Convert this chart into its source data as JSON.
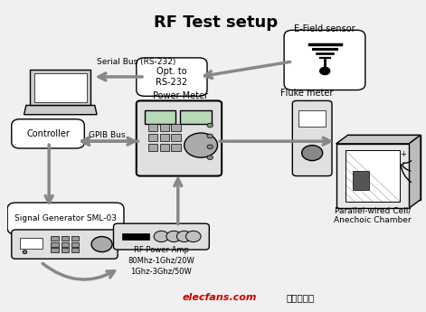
{
  "title": "RF Test setup",
  "title_fontsize": 13,
  "title_fontweight": "bold",
  "bg_color": "#f0f0f0",
  "arrow_color": "#888888",
  "text_color": "#000000",
  "watermark_text": "elecfans.com",
  "watermark_color": "#cc0000",
  "watermark2": "电子发烧友",
  "watermark2_color": "#000000"
}
